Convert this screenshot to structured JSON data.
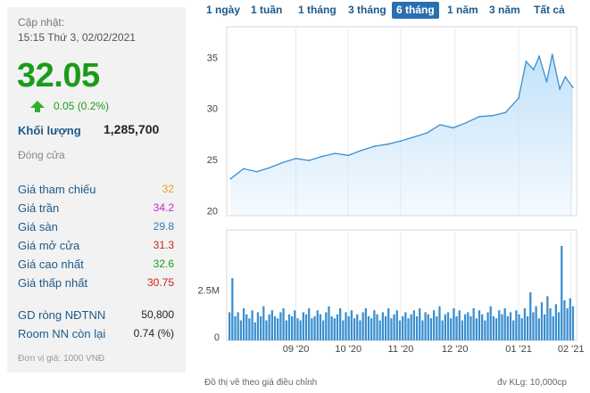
{
  "summary": {
    "updated_label": "Cập nhật:",
    "updated_time": "15:15 Thứ 3, 02/02/2021",
    "price": "32.05",
    "change": "0.05 (0.2%)",
    "volume_label": "Khối lượng",
    "volume_value": "1,285,700",
    "status": "Đóng cửa",
    "unit_note": "Đơn vị giá: 1000 VNĐ"
  },
  "prices": [
    {
      "label": "Giá tham chiếu",
      "value": "32",
      "color": "#f0a020"
    },
    {
      "label": "Giá trần",
      "value": "34.2",
      "color": "#d020d0"
    },
    {
      "label": "Giá sàn",
      "value": "29.8",
      "color": "#2a7fb0"
    },
    {
      "label": "Giá mở cửa",
      "value": "31.3",
      "color": "#d02020"
    },
    {
      "label": "Giá cao nhất",
      "value": "32.6",
      "color": "#1a9c1a"
    },
    {
      "label": "Giá thấp nhất",
      "value": "30.75",
      "color": "#d02020"
    }
  ],
  "foreign": [
    {
      "label": "GD ròng NĐTNN",
      "value": "50,800"
    },
    {
      "label": "Room NN còn lại",
      "value": "0.74 (%)"
    }
  ],
  "periods": [
    "1 ngày",
    "1 tuần",
    "1 tháng",
    "3 tháng",
    "6 tháng",
    "1 năm",
    "3 năm",
    "Tất cả"
  ],
  "active_period": "6 tháng",
  "colors": {
    "accent": "#2a6fb0",
    "up": "#1a9c1a",
    "line": "#3a8fd0",
    "area": "#bfe0fa",
    "volume": "#3a8fd0"
  },
  "footer": {
    "left_note": "Đồ thị vẽ theo giá điều chỉnh",
    "right_note": "đv KLg: 10,000cp"
  },
  "chart_data": [
    {
      "type": "area",
      "yticks": [
        20,
        25,
        30,
        35
      ],
      "ylim": [
        19.5,
        38
      ],
      "x": [
        "2020-08-03",
        "2020-08-10",
        "2020-08-17",
        "2020-08-24",
        "2020-08-31",
        "2020-09-07",
        "2020-09-14",
        "2020-09-21",
        "2020-09-28",
        "2020-10-05",
        "2020-10-12",
        "2020-10-19",
        "2020-10-26",
        "2020-11-02",
        "2020-11-09",
        "2020-11-16",
        "2020-11-23",
        "2020-11-30",
        "2020-12-07",
        "2020-12-14",
        "2020-12-21",
        "2020-12-28",
        "2021-01-04",
        "2021-01-08",
        "2021-01-12",
        "2021-01-15",
        "2021-01-19",
        "2021-01-22",
        "2021-01-26",
        "2021-01-29",
        "2021-02-02"
      ],
      "y": [
        23.1,
        24.1,
        23.8,
        24.2,
        24.7,
        25.1,
        24.9,
        25.3,
        25.6,
        25.4,
        25.9,
        26.3,
        26.5,
        26.8,
        27.2,
        27.6,
        28.4,
        28.1,
        28.6,
        29.2,
        29.3,
        29.6,
        31.0,
        34.6,
        33.8,
        35.1,
        32.6,
        35.3,
        31.9,
        33.1,
        32.05
      ]
    },
    {
      "type": "bar",
      "ylim": [
        0,
        5.5
      ],
      "yticks": [
        {
          "value": 0,
          "label": "0"
        },
        {
          "value": 2.5,
          "label": "2.5M"
        }
      ],
      "values": [
        1.4,
        3.1,
        1.2,
        1.4,
        1.0,
        1.6,
        1.3,
        1.1,
        1.5,
        0.9,
        1.4,
        1.2,
        1.7,
        1.0,
        1.3,
        1.5,
        1.2,
        1.1,
        1.4,
        1.6,
        1.0,
        1.3,
        1.2,
        1.5,
        1.1,
        1.0,
        1.4,
        1.3,
        1.6,
        1.1,
        1.2,
        1.5,
        1.3,
        1.0,
        1.4,
        1.7,
        1.2,
        1.1,
        1.3,
        1.6,
        1.0,
        1.4,
        1.2,
        1.5,
        1.1,
        1.3,
        1.0,
        1.4,
        1.6,
        1.2,
        1.1,
        1.5,
        1.3,
        1.0,
        1.4,
        1.2,
        1.6,
        1.1,
        1.3,
        1.5,
        1.0,
        1.2,
        1.4,
        1.1,
        1.3,
        1.5,
        1.2,
        1.6,
        1.0,
        1.4,
        1.3,
        1.1,
        1.5,
        1.2,
        1.7,
        1.0,
        1.3,
        1.4,
        1.1,
        1.6,
        1.2,
        1.5,
        1.0,
        1.3,
        1.4,
        1.2,
        1.6,
        1.1,
        1.5,
        1.3,
        1.0,
        1.4,
        1.7,
        1.2,
        1.1,
        1.5,
        1.3,
        1.6,
        1.2,
        1.4,
        1.0,
        1.5,
        1.3,
        1.1,
        1.6,
        1.2,
        2.4,
        1.4,
        1.7,
        1.1,
        1.9,
        1.3,
        2.2,
        1.6,
        1.2,
        1.8,
        1.4,
        4.7,
        2.0,
        1.6,
        2.1,
        1.7
      ]
    }
  ],
  "x_ticks": [
    {
      "date": "2020-09-07",
      "label": "09 '20"
    },
    {
      "date": "2020-10-05",
      "label": "10 '20"
    },
    {
      "date": "2020-11-02",
      "label": "11 '20"
    },
    {
      "date": "2020-12-01",
      "label": "12 '20"
    },
    {
      "date": "2021-01-04",
      "label": "01 '21"
    },
    {
      "date": "2021-02-01",
      "label": "02 '21"
    }
  ],
  "x_range": [
    "2020-08-01",
    "2021-02-04"
  ]
}
